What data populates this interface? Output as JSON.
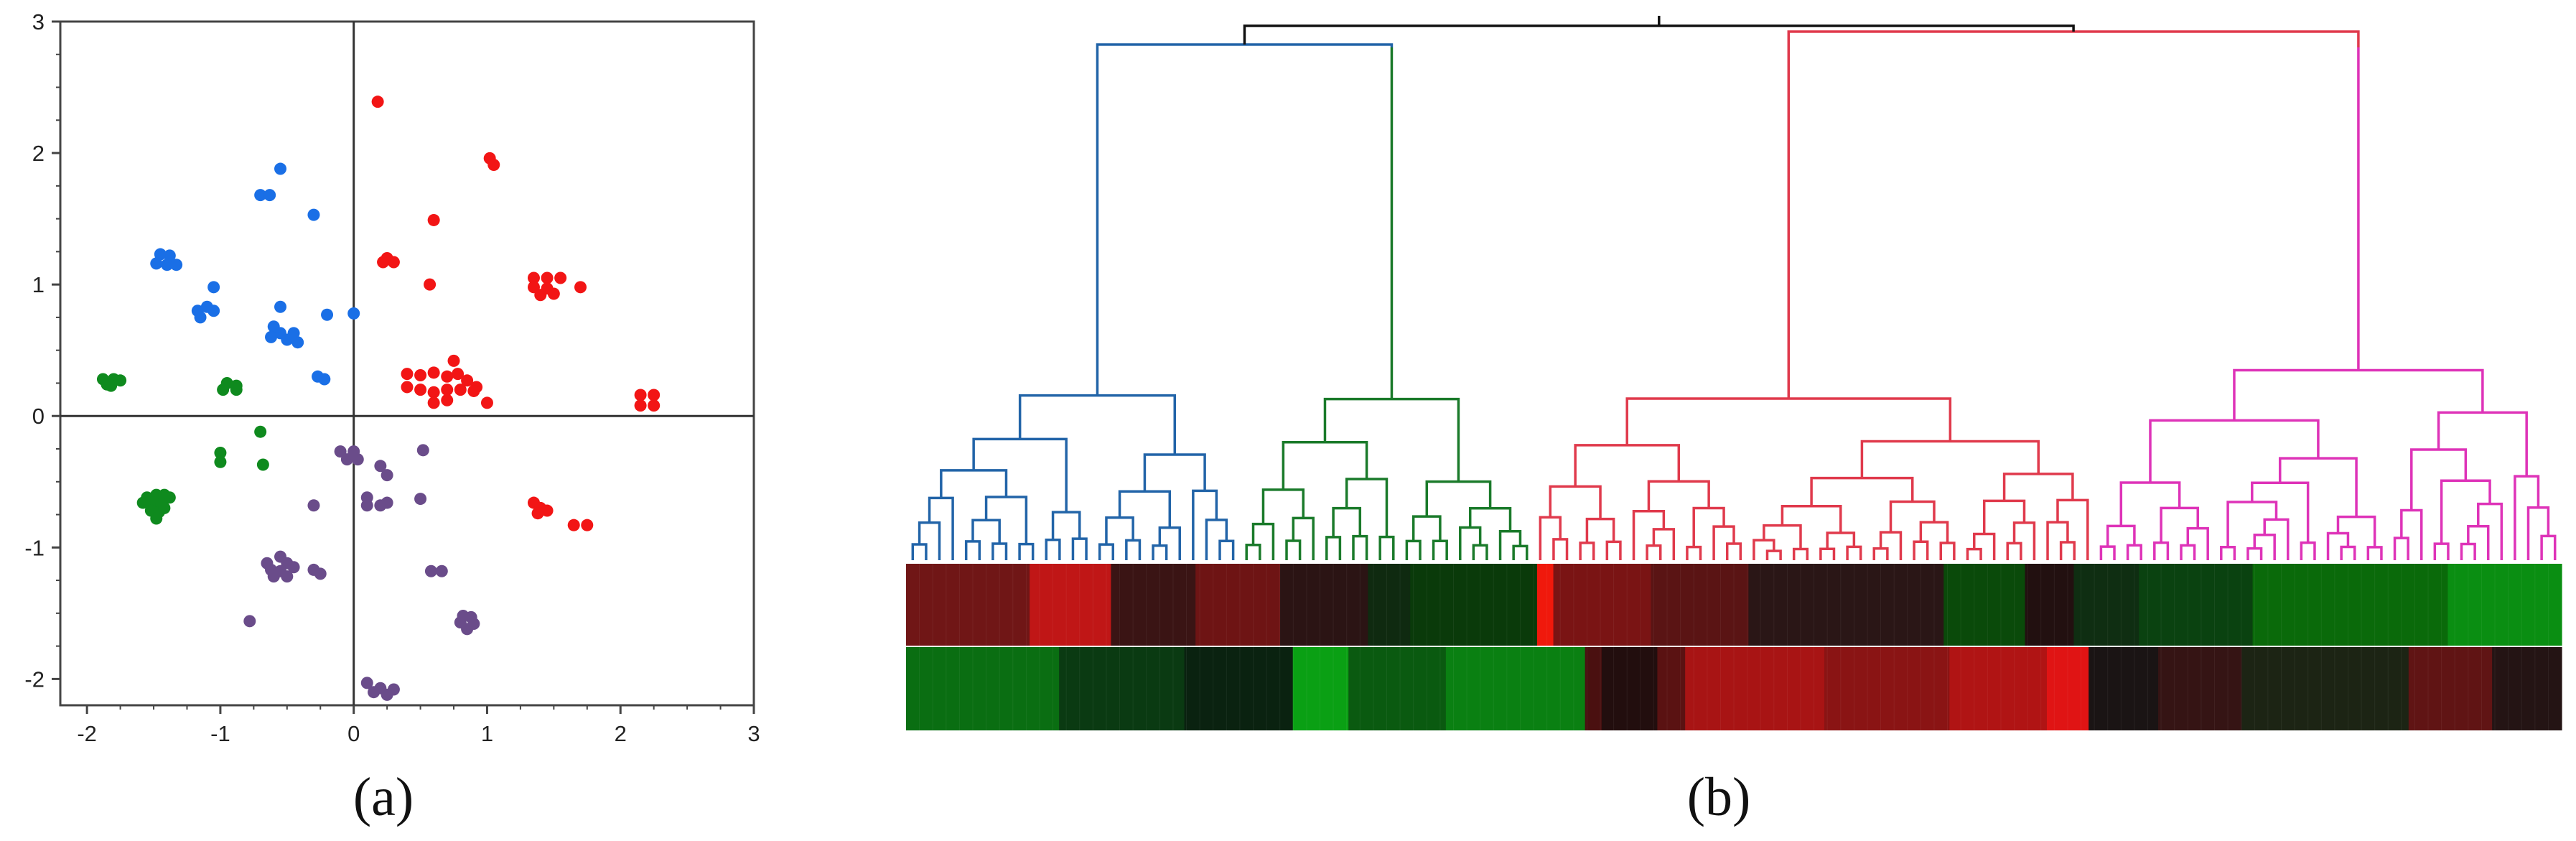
{
  "panel_labels": {
    "a": "(a)",
    "b": "(b)"
  },
  "chart_data": [
    {
      "type": "scatter",
      "title": "",
      "xlabel": "",
      "ylabel": "",
      "xlim": [
        -2.2,
        3
      ],
      "ylim": [
        -2.2,
        3
      ],
      "xticks": [
        -2,
        -1,
        0,
        1,
        2,
        3
      ],
      "yticks": [
        -2,
        -1,
        0,
        1,
        2,
        3
      ],
      "grid": false,
      "reference_lines": {
        "x": 0,
        "y": 0
      },
      "legend": "none",
      "series": [
        {
          "color": "#f21515",
          "points": [
            [
              0.18,
              2.39
            ],
            [
              1.02,
              1.96
            ],
            [
              1.05,
              1.91
            ],
            [
              0.25,
              1.2
            ],
            [
              0.3,
              1.17
            ],
            [
              0.22,
              1.17
            ],
            [
              0.6,
              1.49
            ],
            [
              0.57,
              1.0
            ],
            [
              1.35,
              1.05
            ],
            [
              1.45,
              1.05
            ],
            [
              1.55,
              1.05
            ],
            [
              1.35,
              0.98
            ],
            [
              1.45,
              0.97
            ],
            [
              1.5,
              0.93
            ],
            [
              1.4,
              0.92
            ],
            [
              1.7,
              0.98
            ],
            [
              0.4,
              0.32
            ],
            [
              0.5,
              0.31
            ],
            [
              0.6,
              0.33
            ],
            [
              0.7,
              0.3
            ],
            [
              0.78,
              0.32
            ],
            [
              0.85,
              0.27
            ],
            [
              0.92,
              0.22
            ],
            [
              0.4,
              0.22
            ],
            [
              0.5,
              0.2
            ],
            [
              0.6,
              0.18
            ],
            [
              0.7,
              0.2
            ],
            [
              0.8,
              0.2
            ],
            [
              0.9,
              0.19
            ],
            [
              0.6,
              0.1
            ],
            [
              0.7,
              0.12
            ],
            [
              1.0,
              0.1
            ],
            [
              0.75,
              0.42
            ],
            [
              2.15,
              0.16
            ],
            [
              2.25,
              0.16
            ],
            [
              2.15,
              0.08
            ],
            [
              2.25,
              0.08
            ],
            [
              1.35,
              -0.66
            ],
            [
              1.4,
              -0.7
            ],
            [
              1.45,
              -0.72
            ],
            [
              1.38,
              -0.74
            ],
            [
              1.65,
              -0.83
            ],
            [
              1.75,
              -0.83
            ]
          ]
        },
        {
          "color": "#1a6fe6",
          "points": [
            [
              -0.55,
              1.88
            ],
            [
              -0.7,
              1.68
            ],
            [
              -0.63,
              1.68
            ],
            [
              -0.3,
              1.53
            ],
            [
              -1.45,
              1.23
            ],
            [
              -1.38,
              1.22
            ],
            [
              -1.48,
              1.16
            ],
            [
              -1.4,
              1.15
            ],
            [
              -1.33,
              1.15
            ],
            [
              -1.05,
              0.98
            ],
            [
              -1.1,
              0.83
            ],
            [
              -1.17,
              0.8
            ],
            [
              -1.05,
              0.8
            ],
            [
              -1.15,
              0.75
            ],
            [
              -0.55,
              0.83
            ],
            [
              -0.6,
              0.68
            ],
            [
              -0.55,
              0.63
            ],
            [
              -0.45,
              0.63
            ],
            [
              -0.62,
              0.6
            ],
            [
              -0.5,
              0.58
            ],
            [
              -0.42,
              0.56
            ],
            [
              -0.2,
              0.77
            ],
            [
              0.0,
              0.78
            ],
            [
              -0.27,
              0.3
            ],
            [
              -0.22,
              0.28
            ]
          ]
        },
        {
          "color": "#0f8a1e",
          "points": [
            [
              -1.88,
              0.28
            ],
            [
              -1.8,
              0.28
            ],
            [
              -1.75,
              0.27
            ],
            [
              -1.85,
              0.24
            ],
            [
              -1.82,
              0.23
            ],
            [
              -0.95,
              0.25
            ],
            [
              -0.88,
              0.23
            ],
            [
              -0.98,
              0.2
            ],
            [
              -0.88,
              0.2
            ],
            [
              -0.7,
              -0.12
            ],
            [
              -1.0,
              -0.28
            ],
            [
              -1.0,
              -0.35
            ],
            [
              -0.68,
              -0.37
            ],
            [
              -1.55,
              -0.62
            ],
            [
              -1.48,
              -0.6
            ],
            [
              -1.42,
              -0.6
            ],
            [
              -1.38,
              -0.62
            ],
            [
              -1.5,
              -0.66
            ],
            [
              -1.44,
              -0.67
            ],
            [
              -1.58,
              -0.66
            ],
            [
              -1.52,
              -0.72
            ],
            [
              -1.46,
              -0.73
            ],
            [
              -1.42,
              -0.7
            ],
            [
              -1.48,
              -0.78
            ]
          ]
        },
        {
          "color": "#6a4c8a",
          "points": [
            [
              -0.1,
              -0.27
            ],
            [
              0.0,
              -0.27
            ],
            [
              -0.05,
              -0.33
            ],
            [
              0.03,
              -0.33
            ],
            [
              0.2,
              -0.38
            ],
            [
              0.25,
              -0.45
            ],
            [
              0.52,
              -0.26
            ],
            [
              -0.3,
              -0.68
            ],
            [
              0.1,
              -0.62
            ],
            [
              0.1,
              -0.68
            ],
            [
              0.2,
              -0.68
            ],
            [
              0.25,
              -0.66
            ],
            [
              0.5,
              -0.63
            ],
            [
              -0.55,
              -1.07
            ],
            [
              -0.65,
              -1.12
            ],
            [
              -0.5,
              -1.12
            ],
            [
              -0.62,
              -1.17
            ],
            [
              -0.55,
              -1.18
            ],
            [
              -0.45,
              -1.15
            ],
            [
              -0.6,
              -1.22
            ],
            [
              -0.5,
              -1.22
            ],
            [
              -0.3,
              -1.17
            ],
            [
              -0.25,
              -1.2
            ],
            [
              0.58,
              -1.18
            ],
            [
              0.66,
              -1.18
            ],
            [
              -0.78,
              -1.56
            ],
            [
              0.82,
              -1.52
            ],
            [
              0.88,
              -1.53
            ],
            [
              0.8,
              -1.57
            ],
            [
              0.9,
              -1.58
            ],
            [
              0.85,
              -1.62
            ],
            [
              0.1,
              -2.03
            ],
            [
              0.2,
              -2.07
            ],
            [
              0.15,
              -2.1
            ],
            [
              0.25,
              -2.12
            ],
            [
              0.3,
              -2.08
            ]
          ]
        }
      ]
    },
    {
      "type": "heatmap",
      "title": "",
      "dendrogram": "hierarchical clustering tree above heatmap",
      "cluster_colors": [
        "#2264a8",
        "#1a7a2a",
        "#e03a4c",
        "#de33b8"
      ],
      "root_color": "#111111",
      "clusters": [
        {
          "color": "#2264a8",
          "leaves": 25
        },
        {
          "color": "#1a7a2a",
          "leaves": 22
        },
        {
          "color": "#e03a4c",
          "leaves": 42
        },
        {
          "color": "#de33b8",
          "leaves": 35
        }
      ],
      "rows": 2,
      "segments": [
        [
          {
            "w": 3.8,
            "c": "#701616"
          },
          {
            "w": 2.5,
            "c": "#c01616"
          },
          {
            "w": 2.6,
            "c": "#3a1414"
          },
          {
            "w": 2.6,
            "c": "#6e1414"
          },
          {
            "w": 2.7,
            "c": "#2b1414"
          },
          {
            "w": 1.3,
            "c": "#0f2a10"
          },
          {
            "w": 3.9,
            "c": "#0a3a0a"
          },
          {
            "w": 0.5,
            "c": "#f0190c"
          },
          {
            "w": 3.0,
            "c": "#7a1414"
          },
          {
            "w": 3.0,
            "c": "#5a1414"
          },
          {
            "w": 6.0,
            "c": "#2a1616"
          },
          {
            "w": 2.5,
            "c": "#0a4a0a"
          },
          {
            "w": 1.5,
            "c": "#221010"
          },
          {
            "w": 2.0,
            "c": "#0f2e12"
          },
          {
            "w": 3.5,
            "c": "#0a4210"
          },
          {
            "w": 6.0,
            "c": "#0a6a0a"
          },
          {
            "w": 3.5,
            "c": "#0a8e12"
          }
        ],
        [
          {
            "w": 5.5,
            "c": "#0a6e12"
          },
          {
            "w": 4.5,
            "c": "#0a3a12"
          },
          {
            "w": 3.9,
            "c": "#0a2210"
          },
          {
            "w": 2.0,
            "c": "#0aa014"
          },
          {
            "w": 3.5,
            "c": "#0a5a10"
          },
          {
            "w": 5.0,
            "c": "#0a8012"
          },
          {
            "w": 0.6,
            "c": "#4a1010"
          },
          {
            "w": 2.0,
            "c": "#220e0e"
          },
          {
            "w": 1.0,
            "c": "#5a1212"
          },
          {
            "w": 5.0,
            "c": "#a81414"
          },
          {
            "w": 4.5,
            "c": "#8a1414"
          },
          {
            "w": 3.5,
            "c": "#b01414"
          },
          {
            "w": 1.5,
            "c": "#e01414"
          },
          {
            "w": 2.5,
            "c": "#1a1414"
          },
          {
            "w": 3.0,
            "c": "#351414"
          },
          {
            "w": 6.0,
            "c": "#1c2414"
          },
          {
            "w": 3.0,
            "c": "#601414"
          },
          {
            "w": 2.5,
            "c": "#241414"
          }
        ]
      ]
    }
  ]
}
